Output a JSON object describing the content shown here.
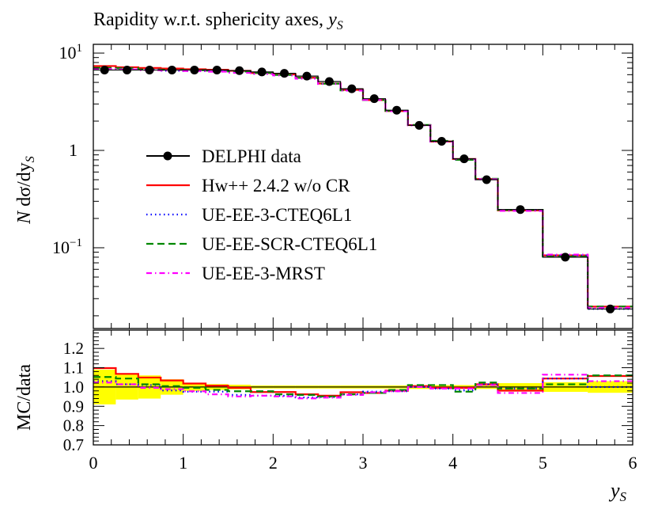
{
  "chart_data": [
    {
      "type": "line",
      "panel": "main",
      "title": "Rapidity w.r.t. sphericity axes, ",
      "title_var": "y",
      "title_sub": "S",
      "ylabel": "N dσ/dy",
      "ylabel_sub": "S",
      "yscale": "log",
      "ylim": [
        0.0148,
        12.3
      ],
      "xlim": [
        0,
        6
      ],
      "ytick_labels": [
        "10",
        "1",
        "10"
      ],
      "ytick_exps": [
        "1",
        "",
        "−1"
      ],
      "bin_edges": [
        0,
        0.25,
        0.5,
        0.75,
        1,
        1.25,
        1.5,
        1.75,
        2,
        2.25,
        2.5,
        2.75,
        3,
        3.25,
        3.5,
        3.75,
        4,
        4.25,
        4.5,
        5,
        5.5,
        6
      ],
      "data": {
        "name": "DELPHI data",
        "color": "#000000",
        "values": [
          6.7,
          6.7,
          6.7,
          6.7,
          6.7,
          6.7,
          6.6,
          6.4,
          6.2,
          5.8,
          5.1,
          4.3,
          3.4,
          2.59,
          1.81,
          1.24,
          0.82,
          0.5,
          0.247,
          0.08,
          0.0235
        ]
      },
      "legend_placement": "center-left",
      "legend": [
        {
          "label": "DELPHI data",
          "color": "#000000",
          "style": "marker-line"
        },
        {
          "label": "Hw++ 2.4.2 w/o CR",
          "color": "#ff0000",
          "style": "solid"
        },
        {
          "label": "UE-EE-3-CTEQ6L1",
          "color": "#0000ff",
          "style": "dotted"
        },
        {
          "label": "UE-EE-SCR-CTEQ6L1",
          "color": "#008800",
          "style": "dashed"
        },
        {
          "label": "UE-EE-3-MRST",
          "color": "#ff00ff",
          "style": "dashdot"
        }
      ]
    },
    {
      "type": "line",
      "panel": "ratio",
      "ylabel": "MC/data",
      "xlabel": "y",
      "xlabel_sub": "S",
      "ylim": [
        0.7,
        1.295
      ],
      "xlim": [
        0,
        6
      ],
      "ytick_labels": [
        "1.2",
        "1.1",
        "1.0",
        "0.9",
        "0.8",
        "0.7"
      ],
      "xtick_labels": [
        "0",
        "1",
        "2",
        "3",
        "4",
        "5",
        "6"
      ],
      "band_color": "#ffff00",
      "data_uncertainty": [
        0.09,
        0.065,
        0.06,
        0.04,
        0.02,
        0.015,
        0.012,
        0.008,
        0.008,
        0.008,
        0.008,
        0.008,
        0.008,
        0.008,
        0.01,
        0.01,
        0.01,
        0.01,
        0.02,
        0.025,
        0.03
      ],
      "series": [
        {
          "name": "Hw++ 2.4.2 w/o CR",
          "color": "#ff0000",
          "style": "solid",
          "values": [
            1.098,
            1.068,
            1.049,
            1.034,
            1.018,
            1.007,
            0.996,
            0.974,
            0.974,
            0.962,
            0.955,
            0.973,
            0.969,
            0.981,
            1.005,
            0.996,
            0.996,
            1.014,
            0.981,
            1.044,
            1.057
          ]
        },
        {
          "name": "UE-EE-3-CTEQ6L1",
          "color": "#0000ff",
          "style": "dotted",
          "values": [
            1.03,
            1.014,
            1.01,
            0.982,
            0.976,
            0.976,
            0.959,
            0.955,
            0.955,
            0.946,
            0.948,
            0.962,
            0.976,
            0.978,
            1.0,
            0.992,
            0.982,
            1.014,
            0.992,
            1.044,
            1.0
          ]
        },
        {
          "name": "UE-EE-SCR-CTEQ6L1",
          "color": "#008800",
          "style": "dashed",
          "values": [
            1.052,
            1.044,
            1.014,
            1.005,
            0.996,
            0.985,
            0.978,
            0.978,
            0.962,
            0.959,
            0.951,
            0.962,
            0.969,
            0.985,
            1.01,
            1.01,
            0.976,
            1.023,
            0.992,
            1.014,
            1.06
          ]
        },
        {
          "name": "UE-EE-3-MRST",
          "color": "#ff00ff",
          "style": "dashdot",
          "values": [
            1.023,
            1.014,
            0.996,
            0.989,
            0.978,
            0.962,
            0.951,
            0.955,
            0.951,
            0.941,
            0.945,
            0.959,
            0.973,
            0.978,
            1.0,
            0.992,
            0.992,
            1.01,
            0.969,
            1.064,
            1.03
          ]
        }
      ]
    }
  ]
}
